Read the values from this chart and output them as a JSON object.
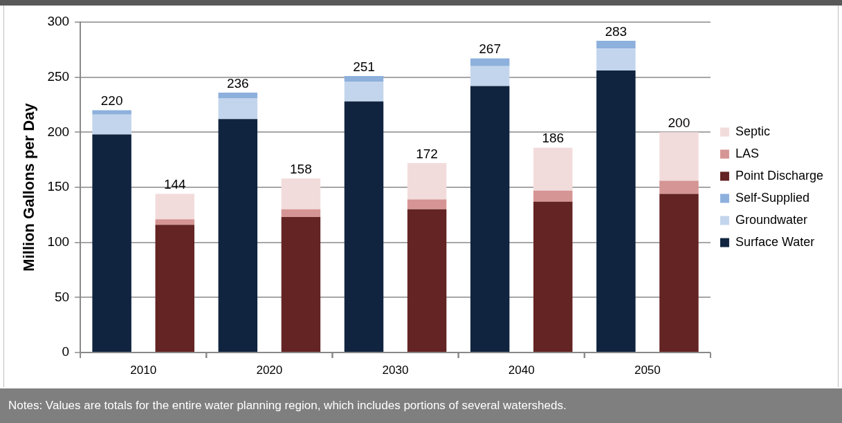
{
  "chart_data": {
    "type": "bar",
    "stacked": true,
    "ylabel": "Million Gallons per Day",
    "categories": [
      "2010",
      null,
      "2020",
      null,
      "2030",
      null,
      "2040",
      null,
      "2050",
      null
    ],
    "series": [
      {
        "name": "Surface Water",
        "color": "#10243f",
        "values": [
          198,
          null,
          212,
          null,
          228,
          null,
          242,
          null,
          256,
          null
        ]
      },
      {
        "name": "Groundwater",
        "color": "#c3d5ec",
        "values": [
          18,
          null,
          19,
          null,
          18,
          null,
          18,
          null,
          20,
          null
        ]
      },
      {
        "name": "Self-Supplied",
        "color": "#8db0dc",
        "values": [
          4,
          null,
          5,
          null,
          5,
          null,
          7,
          null,
          7,
          null
        ]
      },
      {
        "name": "Point Discharge",
        "color": "#632423",
        "values": [
          null,
          116,
          null,
          123,
          null,
          130,
          null,
          137,
          null,
          144
        ]
      },
      {
        "name": "LAS",
        "color": "#d59594",
        "values": [
          null,
          5,
          null,
          7,
          null,
          9,
          null,
          10,
          null,
          12
        ]
      },
      {
        "name": "Septic",
        "color": "#f2dcdb",
        "values": [
          null,
          23,
          null,
          28,
          null,
          33,
          null,
          39,
          null,
          44
        ]
      }
    ],
    "totals": [
      "220",
      "144",
      "236",
      "158",
      "251",
      "172",
      "267",
      "186",
      "283",
      "200"
    ],
    "ylim": [
      0,
      300
    ],
    "yticks": [
      0,
      50,
      100,
      150,
      200,
      250,
      300
    ],
    "grid": "y",
    "legend": "right",
    "annotations": [
      "Notes: Values are totals for the entire water planning region, which includes portions of several watersheds."
    ]
  }
}
